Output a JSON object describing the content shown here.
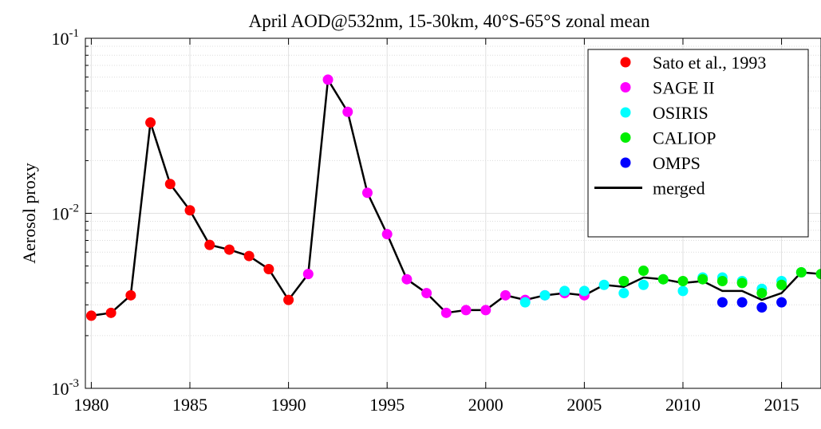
{
  "chart_data": {
    "type": "scatter",
    "title": "April AOD@532nm, 15-30km, 40°S-65°S zonal mean",
    "xlabel": "",
    "ylabel": "Aerosol proxy",
    "xlim": [
      1979.7,
      2017
    ],
    "ylim": [
      0.001,
      0.1
    ],
    "yscale": "log",
    "grid": true,
    "minor_grid": true,
    "legend_position": "top-right",
    "x_ticks": [
      1980,
      1985,
      1990,
      1995,
      2000,
      2005,
      2010,
      2015
    ],
    "x_tick_labels": [
      "1980",
      "1985",
      "1990",
      "1995",
      "2000",
      "2005",
      "2010",
      "2015"
    ],
    "y_ticks": [
      {
        "value": 0.001,
        "base": "10",
        "exp": "-3"
      },
      {
        "value": 0.01,
        "base": "10",
        "exp": "-2"
      },
      {
        "value": 0.1,
        "base": "10",
        "exp": "-1"
      }
    ],
    "series": [
      {
        "name": "Sato et al., 1993",
        "kind": "marker",
        "color": "#ff0000",
        "x": [
          1980,
          1981,
          1982,
          1983,
          1984,
          1985,
          1986,
          1987,
          1988,
          1989,
          1990
        ],
        "y": [
          0.0026,
          0.0027,
          0.0034,
          0.033,
          0.0147,
          0.0104,
          0.0066,
          0.0062,
          0.0057,
          0.0048,
          0.0032
        ]
      },
      {
        "name": "SAGE II",
        "kind": "marker",
        "color": "#ff00ff",
        "x": [
          1991,
          1992,
          1993,
          1994,
          1995,
          1996,
          1997,
          1998,
          1999,
          2000,
          2001,
          2002,
          2003,
          2004,
          2005
        ],
        "y": [
          0.0045,
          0.058,
          0.038,
          0.0131,
          0.0076,
          0.0042,
          0.0035,
          0.0027,
          0.0028,
          0.0028,
          0.0034,
          0.0032,
          0.0034,
          0.0035,
          0.0034
        ]
      },
      {
        "name": "OSIRIS",
        "kind": "marker",
        "color": "#00ffff",
        "x": [
          2002,
          2003,
          2004,
          2005,
          2006,
          2007,
          2008,
          2009,
          2010,
          2011,
          2012,
          2013,
          2014,
          2015,
          2016
        ],
        "y": [
          0.0031,
          0.0034,
          0.0036,
          0.0036,
          0.0039,
          0.0035,
          0.0039,
          0.0042,
          0.0036,
          0.0043,
          0.0043,
          0.0041,
          0.0037,
          0.0041,
          0.0046
        ]
      },
      {
        "name": "CALIOP",
        "kind": "marker",
        "color": "#00ee00",
        "x": [
          2007,
          2008,
          2009,
          2010,
          2011,
          2012,
          2013,
          2014,
          2015,
          2016,
          2017
        ],
        "y": [
          0.0041,
          0.0047,
          0.0042,
          0.0041,
          0.0042,
          0.0041,
          0.004,
          0.0035,
          0.0039,
          0.0046,
          0.0045
        ]
      },
      {
        "name": "OMPS",
        "kind": "marker",
        "color": "#0000ff",
        "x": [
          2012,
          2013,
          2014,
          2015
        ],
        "y": [
          0.0031,
          0.0031,
          0.0029,
          0.0031
        ]
      },
      {
        "name": "merged",
        "kind": "line",
        "color": "#000000",
        "x": [
          1980,
          1981,
          1982,
          1983,
          1984,
          1985,
          1986,
          1987,
          1988,
          1989,
          1990,
          1991,
          1992,
          1993,
          1994,
          1995,
          1996,
          1997,
          1998,
          1999,
          2000,
          2001,
          2002,
          2003,
          2004,
          2005,
          2006,
          2007,
          2008,
          2009,
          2010,
          2011,
          2012,
          2013,
          2014,
          2015,
          2016,
          2017
        ],
        "y": [
          0.0026,
          0.0027,
          0.0034,
          0.033,
          0.0147,
          0.0104,
          0.0066,
          0.0062,
          0.0057,
          0.0048,
          0.0032,
          0.0045,
          0.058,
          0.038,
          0.0131,
          0.0076,
          0.0042,
          0.0035,
          0.0027,
          0.0028,
          0.0028,
          0.0034,
          0.0032,
          0.0034,
          0.0035,
          0.0034,
          0.0039,
          0.0038,
          0.0043,
          0.0042,
          0.004,
          0.0041,
          0.0036,
          0.0036,
          0.0032,
          0.0035,
          0.0046,
          0.0045
        ]
      }
    ]
  }
}
